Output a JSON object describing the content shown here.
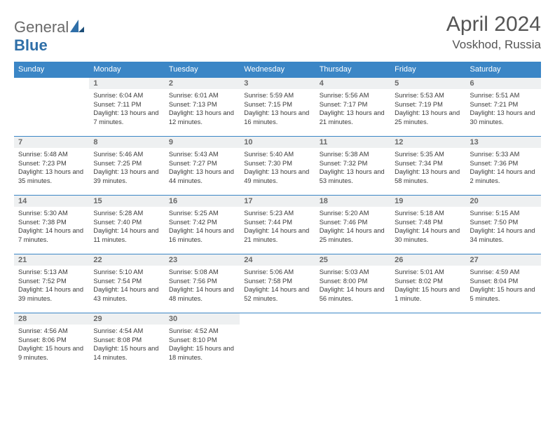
{
  "brand": {
    "part1": "General",
    "part2": "Blue"
  },
  "title": "April 2024",
  "location": "Voskhod, Russia",
  "colors": {
    "header_bg": "#3b86c6",
    "header_text": "#ffffff",
    "daynum_bg": "#eef0f1",
    "daynum_text": "#696969",
    "body_text": "#3a3a3a",
    "rule": "#3b86c6",
    "logo_gray": "#6a6a6a",
    "logo_blue": "#2f6fa8"
  },
  "weekdays": [
    "Sunday",
    "Monday",
    "Tuesday",
    "Wednesday",
    "Thursday",
    "Friday",
    "Saturday"
  ],
  "layout": {
    "first_weekday_index": 1,
    "days_in_month": 30
  },
  "days": {
    "1": {
      "sunrise": "6:04 AM",
      "sunset": "7:11 PM",
      "daylight": "13 hours and 7 minutes."
    },
    "2": {
      "sunrise": "6:01 AM",
      "sunset": "7:13 PM",
      "daylight": "13 hours and 12 minutes."
    },
    "3": {
      "sunrise": "5:59 AM",
      "sunset": "7:15 PM",
      "daylight": "13 hours and 16 minutes."
    },
    "4": {
      "sunrise": "5:56 AM",
      "sunset": "7:17 PM",
      "daylight": "13 hours and 21 minutes."
    },
    "5": {
      "sunrise": "5:53 AM",
      "sunset": "7:19 PM",
      "daylight": "13 hours and 25 minutes."
    },
    "6": {
      "sunrise": "5:51 AM",
      "sunset": "7:21 PM",
      "daylight": "13 hours and 30 minutes."
    },
    "7": {
      "sunrise": "5:48 AM",
      "sunset": "7:23 PM",
      "daylight": "13 hours and 35 minutes."
    },
    "8": {
      "sunrise": "5:46 AM",
      "sunset": "7:25 PM",
      "daylight": "13 hours and 39 minutes."
    },
    "9": {
      "sunrise": "5:43 AM",
      "sunset": "7:27 PM",
      "daylight": "13 hours and 44 minutes."
    },
    "10": {
      "sunrise": "5:40 AM",
      "sunset": "7:30 PM",
      "daylight": "13 hours and 49 minutes."
    },
    "11": {
      "sunrise": "5:38 AM",
      "sunset": "7:32 PM",
      "daylight": "13 hours and 53 minutes."
    },
    "12": {
      "sunrise": "5:35 AM",
      "sunset": "7:34 PM",
      "daylight": "13 hours and 58 minutes."
    },
    "13": {
      "sunrise": "5:33 AM",
      "sunset": "7:36 PM",
      "daylight": "14 hours and 2 minutes."
    },
    "14": {
      "sunrise": "5:30 AM",
      "sunset": "7:38 PM",
      "daylight": "14 hours and 7 minutes."
    },
    "15": {
      "sunrise": "5:28 AM",
      "sunset": "7:40 PM",
      "daylight": "14 hours and 11 minutes."
    },
    "16": {
      "sunrise": "5:25 AM",
      "sunset": "7:42 PM",
      "daylight": "14 hours and 16 minutes."
    },
    "17": {
      "sunrise": "5:23 AM",
      "sunset": "7:44 PM",
      "daylight": "14 hours and 21 minutes."
    },
    "18": {
      "sunrise": "5:20 AM",
      "sunset": "7:46 PM",
      "daylight": "14 hours and 25 minutes."
    },
    "19": {
      "sunrise": "5:18 AM",
      "sunset": "7:48 PM",
      "daylight": "14 hours and 30 minutes."
    },
    "20": {
      "sunrise": "5:15 AM",
      "sunset": "7:50 PM",
      "daylight": "14 hours and 34 minutes."
    },
    "21": {
      "sunrise": "5:13 AM",
      "sunset": "7:52 PM",
      "daylight": "14 hours and 39 minutes."
    },
    "22": {
      "sunrise": "5:10 AM",
      "sunset": "7:54 PM",
      "daylight": "14 hours and 43 minutes."
    },
    "23": {
      "sunrise": "5:08 AM",
      "sunset": "7:56 PM",
      "daylight": "14 hours and 48 minutes."
    },
    "24": {
      "sunrise": "5:06 AM",
      "sunset": "7:58 PM",
      "daylight": "14 hours and 52 minutes."
    },
    "25": {
      "sunrise": "5:03 AM",
      "sunset": "8:00 PM",
      "daylight": "14 hours and 56 minutes."
    },
    "26": {
      "sunrise": "5:01 AM",
      "sunset": "8:02 PM",
      "daylight": "15 hours and 1 minute."
    },
    "27": {
      "sunrise": "4:59 AM",
      "sunset": "8:04 PM",
      "daylight": "15 hours and 5 minutes."
    },
    "28": {
      "sunrise": "4:56 AM",
      "sunset": "8:06 PM",
      "daylight": "15 hours and 9 minutes."
    },
    "29": {
      "sunrise": "4:54 AM",
      "sunset": "8:08 PM",
      "daylight": "15 hours and 14 minutes."
    },
    "30": {
      "sunrise": "4:52 AM",
      "sunset": "8:10 PM",
      "daylight": "15 hours and 18 minutes."
    }
  },
  "labels": {
    "sunrise": "Sunrise:",
    "sunset": "Sunset:",
    "daylight": "Daylight:"
  }
}
